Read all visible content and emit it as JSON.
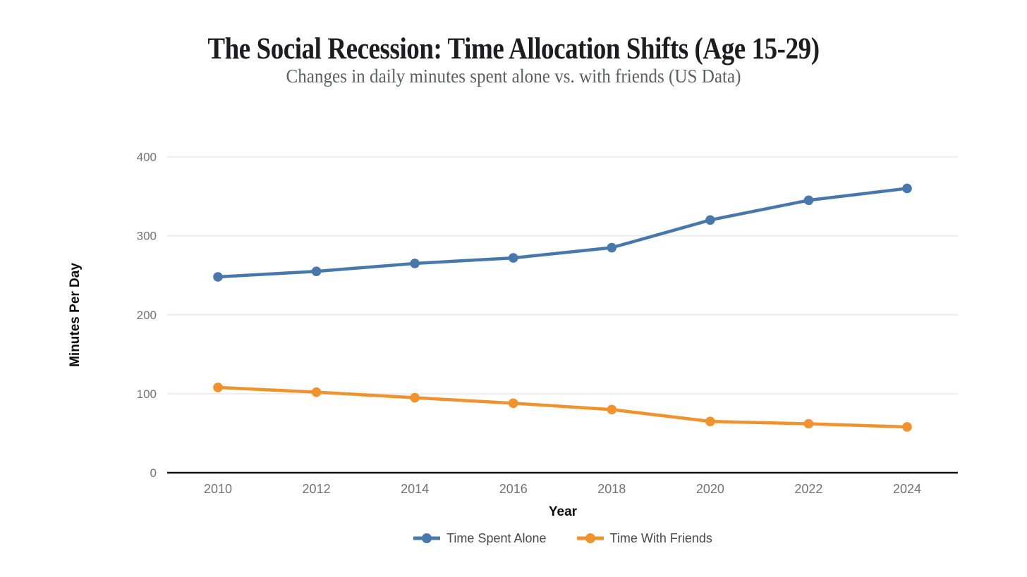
{
  "page": {
    "background_color": "#ffffff"
  },
  "chart_data": {
    "type": "line",
    "title": "The Social Recession: Time Allocation Shifts (Age 15-29)",
    "subtitle": "Changes in daily minutes spent alone vs. with friends (US Data)",
    "xlabel": "Year",
    "ylabel": "Minutes Per Day",
    "categories": [
      "2010",
      "2012",
      "2014",
      "2016",
      "2018",
      "2020",
      "2022",
      "2024"
    ],
    "series": [
      {
        "name": "Time Spent Alone",
        "color": "#4878AB",
        "values": [
          248,
          255,
          265,
          272,
          285,
          320,
          345,
          360
        ]
      },
      {
        "name": "Time With Friends",
        "color": "#F0922E",
        "values": [
          108,
          102,
          95,
          88,
          80,
          65,
          62,
          58
        ]
      }
    ],
    "ylim": [
      0,
      400
    ],
    "yticks": [
      0,
      100,
      200,
      300,
      400
    ],
    "grid": true,
    "legend_position": "bottom",
    "marker": "circle",
    "gridline_color": "#EDEDED",
    "axis_line_color": "#111111",
    "tick_label_color": "#737373"
  }
}
